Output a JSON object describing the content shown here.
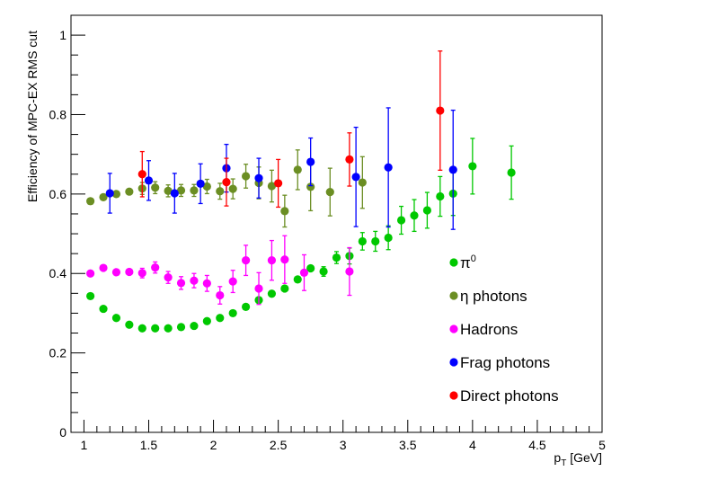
{
  "chart_data": {
    "type": "scatter",
    "title": "",
    "xlabel": "p_T [GeV]",
    "xlabel_main": "p",
    "xlabel_sub": "T",
    "xlabel_unit": " [GeV]",
    "ylabel": "Efficiency of MPC-EX RMS cut",
    "xlim": [
      0.9,
      5.0
    ],
    "ylim": [
      0.0,
      1.05
    ],
    "xticks": [
      1,
      1.5,
      2,
      2.5,
      3,
      3.5,
      4,
      4.5,
      5
    ],
    "xtick_labels": [
      "1",
      "1.5",
      "2",
      "2.5",
      "3",
      "3.5",
      "4",
      "4.5",
      "5"
    ],
    "yticks": [
      0,
      0.2,
      0.4,
      0.6,
      0.8,
      1
    ],
    "ytick_labels": [
      "0",
      "0.2",
      "0.4",
      "0.6",
      "0.8",
      "1"
    ],
    "grid": false,
    "legend_position": "right",
    "series": [
      {
        "name": "π0",
        "legend_main": "π",
        "legend_sup": "0",
        "color": "#00c800",
        "points": [
          [
            1.05,
            0.343,
            0.005
          ],
          [
            1.15,
            0.311,
            0.005
          ],
          [
            1.25,
            0.288,
            0.005
          ],
          [
            1.35,
            0.271,
            0.005
          ],
          [
            1.45,
            0.262,
            0.005
          ],
          [
            1.55,
            0.262,
            0.005
          ],
          [
            1.65,
            0.262,
            0.005
          ],
          [
            1.75,
            0.265,
            0.005
          ],
          [
            1.85,
            0.268,
            0.005
          ],
          [
            1.95,
            0.28,
            0.005
          ],
          [
            2.05,
            0.288,
            0.005
          ],
          [
            2.15,
            0.3,
            0.005
          ],
          [
            2.25,
            0.316,
            0.005
          ],
          [
            2.35,
            0.333,
            0.005
          ],
          [
            2.45,
            0.349,
            0.006
          ],
          [
            2.55,
            0.362,
            0.007
          ],
          [
            2.65,
            0.385,
            0.008
          ],
          [
            2.75,
            0.413,
            0.01
          ],
          [
            2.85,
            0.405,
            0.012
          ],
          [
            2.95,
            0.44,
            0.015
          ],
          [
            3.05,
            0.444,
            0.02
          ],
          [
            3.15,
            0.481,
            0.022
          ],
          [
            3.25,
            0.481,
            0.025
          ],
          [
            3.35,
            0.49,
            0.03
          ],
          [
            3.45,
            0.534,
            0.035
          ],
          [
            3.55,
            0.546,
            0.04
          ],
          [
            3.65,
            0.559,
            0.045
          ],
          [
            3.75,
            0.594,
            0.05
          ],
          [
            3.85,
            0.601,
            0.055
          ],
          [
            4.0,
            0.67,
            0.07
          ],
          [
            4.3,
            0.654,
            0.067
          ]
        ]
      },
      {
        "name": "η photons",
        "legend_main": "η photons",
        "legend_sup": "",
        "color": "#6b8e23",
        "points": [
          [
            1.05,
            0.582,
            0.01
          ],
          [
            1.15,
            0.592,
            0.01
          ],
          [
            1.25,
            0.6,
            0.01
          ],
          [
            1.35,
            0.606,
            0.01
          ],
          [
            1.45,
            0.614,
            0.015
          ],
          [
            1.55,
            0.616,
            0.015
          ],
          [
            1.65,
            0.608,
            0.015
          ],
          [
            1.75,
            0.609,
            0.015
          ],
          [
            1.85,
            0.609,
            0.015
          ],
          [
            1.95,
            0.619,
            0.018
          ],
          [
            2.05,
            0.607,
            0.02
          ],
          [
            2.15,
            0.613,
            0.025
          ],
          [
            2.25,
            0.645,
            0.03
          ],
          [
            2.35,
            0.628,
            0.04
          ],
          [
            2.45,
            0.62,
            0.04
          ],
          [
            2.55,
            0.557,
            0.04
          ],
          [
            2.65,
            0.661,
            0.05
          ],
          [
            2.75,
            0.618,
            0.06
          ],
          [
            2.9,
            0.605,
            0.06
          ],
          [
            3.15,
            0.629,
            0.065
          ]
        ]
      },
      {
        "name": "Hadrons",
        "legend_main": "Hadrons",
        "legend_sup": "",
        "color": "#ff00ff",
        "points": [
          [
            1.05,
            0.4,
            0.008
          ],
          [
            1.15,
            0.414,
            0.01
          ],
          [
            1.25,
            0.403,
            0.01
          ],
          [
            1.35,
            0.404,
            0.01
          ],
          [
            1.45,
            0.401,
            0.012
          ],
          [
            1.55,
            0.415,
            0.014
          ],
          [
            1.65,
            0.39,
            0.015
          ],
          [
            1.75,
            0.376,
            0.016
          ],
          [
            1.85,
            0.382,
            0.018
          ],
          [
            1.95,
            0.375,
            0.02
          ],
          [
            2.05,
            0.345,
            0.022
          ],
          [
            2.15,
            0.38,
            0.028
          ],
          [
            2.25,
            0.433,
            0.038
          ],
          [
            2.35,
            0.362,
            0.04
          ],
          [
            2.45,
            0.433,
            0.05
          ],
          [
            2.55,
            0.435,
            0.06
          ],
          [
            2.7,
            0.402,
            0.045
          ],
          [
            3.05,
            0.405,
            0.06
          ]
        ]
      },
      {
        "name": "Frag photons",
        "legend_main": "Frag photons",
        "legend_sup": "",
        "color": "#0000ff",
        "points": [
          [
            1.2,
            0.602,
            0.05
          ],
          [
            1.5,
            0.634,
            0.05
          ],
          [
            1.7,
            0.602,
            0.05
          ],
          [
            1.9,
            0.626,
            0.05
          ],
          [
            2.1,
            0.665,
            0.06
          ],
          [
            2.35,
            0.64,
            0.05
          ],
          [
            2.75,
            0.681,
            0.06
          ],
          [
            3.1,
            0.643,
            0.125
          ],
          [
            3.35,
            0.667,
            0.15
          ],
          [
            3.85,
            0.661,
            0.15
          ]
        ]
      },
      {
        "name": "Direct photons",
        "legend_main": "Direct photons",
        "legend_sup": "",
        "color": "#ff0000",
        "points": [
          [
            1.45,
            0.65,
            0.057
          ],
          [
            2.1,
            0.63,
            0.06
          ],
          [
            2.5,
            0.627,
            0.06
          ],
          [
            3.05,
            0.687,
            0.067
          ],
          [
            3.75,
            0.81,
            0.15
          ]
        ]
      }
    ]
  }
}
